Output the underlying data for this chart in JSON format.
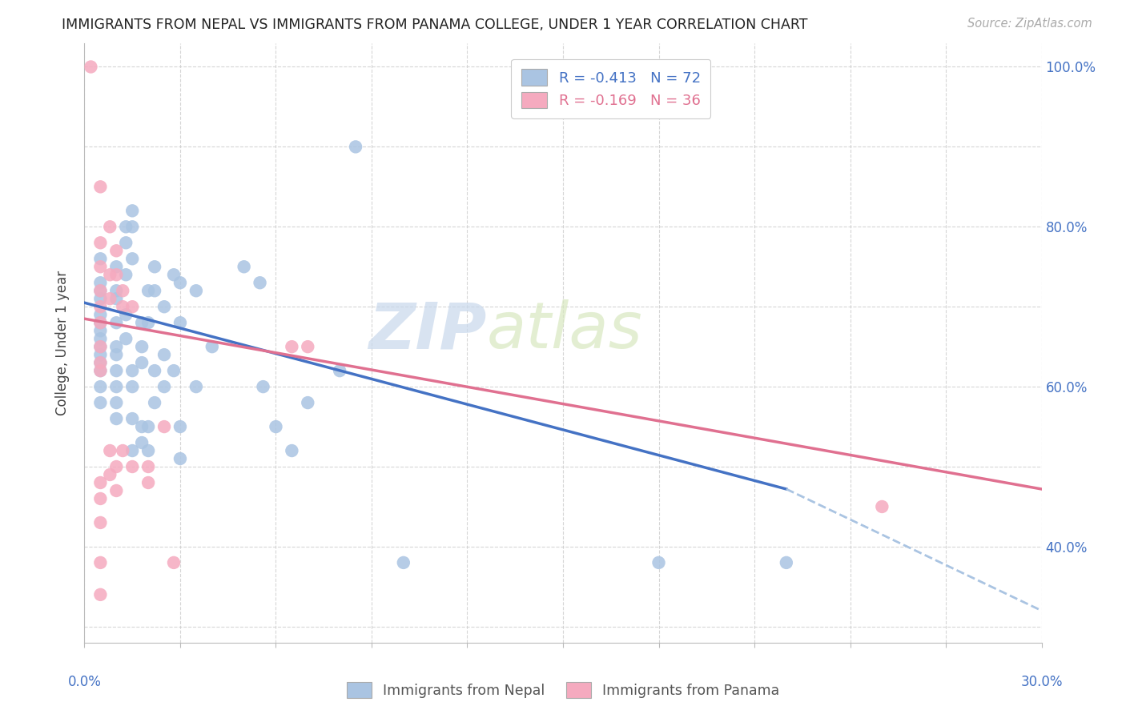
{
  "title": "IMMIGRANTS FROM NEPAL VS IMMIGRANTS FROM PANAMA COLLEGE, UNDER 1 YEAR CORRELATION CHART",
  "source": "Source: ZipAtlas.com",
  "ylabel": "College, Under 1 year",
  "legend_nepal": "R = -0.413   N = 72",
  "legend_panama": "R = -0.169   N = 36",
  "legend_label_nepal": "Immigrants from Nepal",
  "legend_label_panama": "Immigrants from Panama",
  "nepal_color": "#aac4e2",
  "panama_color": "#f5aabf",
  "nepal_line_color": "#4472c4",
  "panama_line_color": "#e07090",
  "dashed_line_color": "#aac4e2",
  "watermark_zip": "ZIP",
  "watermark_atlas": "atlas",
  "xlim": [
    0.0,
    0.3
  ],
  "ylim": [
    0.28,
    1.03
  ],
  "right_yticks": [
    1.0,
    0.8,
    0.6,
    0.4
  ],
  "right_yticklabels": [
    "100.0%",
    "80.0%",
    "60.0%",
    "40.0%"
  ],
  "nepal_scatter": [
    [
      0.005,
      0.69
    ],
    [
      0.005,
      0.72
    ],
    [
      0.005,
      0.68
    ],
    [
      0.005,
      0.65
    ],
    [
      0.005,
      0.64
    ],
    [
      0.005,
      0.62
    ],
    [
      0.005,
      0.71
    ],
    [
      0.005,
      0.66
    ],
    [
      0.005,
      0.63
    ],
    [
      0.005,
      0.6
    ],
    [
      0.005,
      0.58
    ],
    [
      0.005,
      0.67
    ],
    [
      0.005,
      0.73
    ],
    [
      0.005,
      0.76
    ],
    [
      0.01,
      0.68
    ],
    [
      0.01,
      0.71
    ],
    [
      0.01,
      0.64
    ],
    [
      0.01,
      0.65
    ],
    [
      0.01,
      0.62
    ],
    [
      0.01,
      0.58
    ],
    [
      0.01,
      0.56
    ],
    [
      0.01,
      0.6
    ],
    [
      0.01,
      0.75
    ],
    [
      0.01,
      0.72
    ],
    [
      0.013,
      0.78
    ],
    [
      0.013,
      0.8
    ],
    [
      0.013,
      0.74
    ],
    [
      0.013,
      0.69
    ],
    [
      0.013,
      0.66
    ],
    [
      0.015,
      0.82
    ],
    [
      0.015,
      0.8
    ],
    [
      0.015,
      0.76
    ],
    [
      0.015,
      0.62
    ],
    [
      0.015,
      0.6
    ],
    [
      0.015,
      0.56
    ],
    [
      0.015,
      0.52
    ],
    [
      0.018,
      0.65
    ],
    [
      0.018,
      0.63
    ],
    [
      0.018,
      0.68
    ],
    [
      0.018,
      0.55
    ],
    [
      0.018,
      0.53
    ],
    [
      0.02,
      0.72
    ],
    [
      0.02,
      0.68
    ],
    [
      0.02,
      0.55
    ],
    [
      0.02,
      0.52
    ],
    [
      0.022,
      0.75
    ],
    [
      0.022,
      0.72
    ],
    [
      0.022,
      0.62
    ],
    [
      0.022,
      0.58
    ],
    [
      0.025,
      0.7
    ],
    [
      0.025,
      0.64
    ],
    [
      0.025,
      0.6
    ],
    [
      0.028,
      0.74
    ],
    [
      0.028,
      0.62
    ],
    [
      0.03,
      0.73
    ],
    [
      0.03,
      0.68
    ],
    [
      0.03,
      0.55
    ],
    [
      0.03,
      0.51
    ],
    [
      0.035,
      0.72
    ],
    [
      0.035,
      0.6
    ],
    [
      0.04,
      0.65
    ],
    [
      0.05,
      0.75
    ],
    [
      0.055,
      0.73
    ],
    [
      0.056,
      0.6
    ],
    [
      0.06,
      0.55
    ],
    [
      0.065,
      0.52
    ],
    [
      0.07,
      0.58
    ],
    [
      0.08,
      0.62
    ],
    [
      0.085,
      0.9
    ],
    [
      0.1,
      0.38
    ],
    [
      0.18,
      0.38
    ],
    [
      0.22,
      0.38
    ]
  ],
  "panama_scatter": [
    [
      0.002,
      1.0
    ],
    [
      0.005,
      0.85
    ],
    [
      0.005,
      0.78
    ],
    [
      0.005,
      0.75
    ],
    [
      0.005,
      0.72
    ],
    [
      0.005,
      0.7
    ],
    [
      0.005,
      0.68
    ],
    [
      0.005,
      0.65
    ],
    [
      0.005,
      0.63
    ],
    [
      0.005,
      0.62
    ],
    [
      0.005,
      0.48
    ],
    [
      0.005,
      0.46
    ],
    [
      0.005,
      0.43
    ],
    [
      0.005,
      0.38
    ],
    [
      0.005,
      0.34
    ],
    [
      0.008,
      0.8
    ],
    [
      0.008,
      0.74
    ],
    [
      0.008,
      0.71
    ],
    [
      0.008,
      0.52
    ],
    [
      0.008,
      0.49
    ],
    [
      0.01,
      0.77
    ],
    [
      0.01,
      0.74
    ],
    [
      0.01,
      0.5
    ],
    [
      0.01,
      0.47
    ],
    [
      0.012,
      0.72
    ],
    [
      0.012,
      0.7
    ],
    [
      0.012,
      0.52
    ],
    [
      0.015,
      0.7
    ],
    [
      0.015,
      0.5
    ],
    [
      0.02,
      0.5
    ],
    [
      0.02,
      0.48
    ],
    [
      0.025,
      0.55
    ],
    [
      0.028,
      0.38
    ],
    [
      0.065,
      0.65
    ],
    [
      0.07,
      0.65
    ],
    [
      0.25,
      0.45
    ]
  ],
  "nepal_trendline": [
    [
      0.0,
      0.705
    ],
    [
      0.22,
      0.472
    ]
  ],
  "nepal_dashed_line": [
    [
      0.22,
      0.472
    ],
    [
      0.3,
      0.32
    ]
  ],
  "panama_trendline": [
    [
      0.0,
      0.685
    ],
    [
      0.3,
      0.472
    ]
  ]
}
